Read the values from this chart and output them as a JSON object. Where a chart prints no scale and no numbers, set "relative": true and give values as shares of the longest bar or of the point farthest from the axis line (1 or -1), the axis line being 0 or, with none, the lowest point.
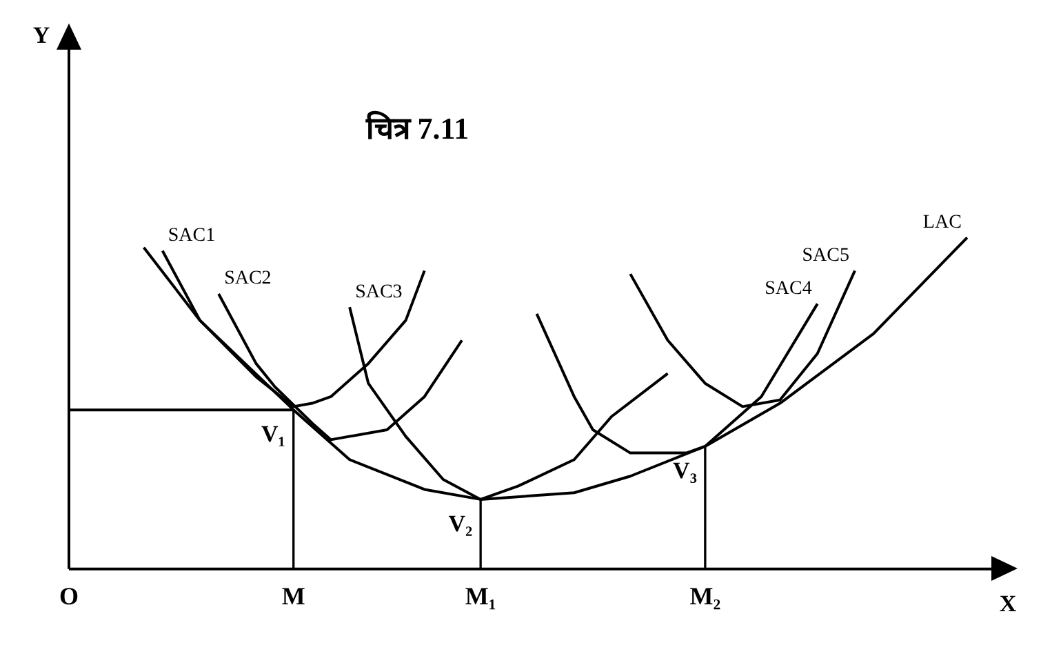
{
  "chart_data": {
    "type": "line",
    "title": "चित्र 7.11",
    "xlabel": "X",
    "relative": true,
    "grid": false,
    "legend": false,
    "marker": "none",
    "tick_labels": "x",
    "categories": [
      "O",
      null,
      null,
      null,
      null,
      null,
      null,
      null,
      null,
      null,
      null,
      null,
      "M",
      null,
      null,
      null,
      null,
      null,
      null,
      null,
      null,
      null,
      "M₁",
      null,
      null,
      null,
      null,
      null,
      null,
      null,
      null,
      null,
      null,
      null,
      "M₂",
      null,
      null,
      null,
      null,
      null,
      null,
      null,
      null,
      null,
      null,
      null,
      null,
      null,
      null,
      null
    ],
    "series": [
      {
        "name": "LAC",
        "color": "#000000",
        "values": [
          null,
          null,
          null,
          null,
          0.97,
          null,
          null,
          0.75,
          null,
          null,
          null,
          null,
          0.48,
          null,
          null,
          0.33,
          null,
          null,
          null,
          0.24,
          null,
          null,
          0.21,
          null,
          null,
          null,
          null,
          0.23,
          null,
          null,
          0.28,
          null,
          null,
          null,
          0.37,
          null,
          null,
          null,
          0.5,
          null,
          null,
          null,
          null,
          0.71,
          null,
          null,
          null,
          null,
          1.0,
          null
        ]
      },
      {
        "name": "SAC1",
        "color": "#000000",
        "values": [
          null,
          null,
          null,
          null,
          null,
          0.96,
          null,
          0.75,
          null,
          null,
          0.58,
          null,
          0.49,
          0.5,
          0.52,
          null,
          0.62,
          null,
          0.75,
          0.9,
          null,
          null,
          null,
          null,
          null,
          null,
          null,
          null,
          null,
          null,
          null,
          null,
          null,
          null,
          null,
          null,
          null,
          null,
          null,
          null,
          null,
          null,
          null,
          null,
          null,
          null,
          null,
          null,
          null,
          null
        ]
      },
      {
        "name": "SAC2",
        "color": "#000000",
        "values": [
          null,
          null,
          null,
          null,
          null,
          null,
          null,
          null,
          0.83,
          null,
          0.62,
          0.55,
          null,
          0.44,
          0.39,
          null,
          null,
          0.42,
          null,
          0.52,
          null,
          0.69,
          null,
          null,
          null,
          null,
          null,
          null,
          null,
          null,
          null,
          null,
          null,
          null,
          null,
          null,
          null,
          null,
          null,
          null,
          null,
          null,
          null,
          null,
          null,
          null,
          null,
          null,
          null,
          null
        ]
      },
      {
        "name": "SAC3",
        "color": "#000000",
        "values": [
          null,
          null,
          null,
          null,
          null,
          null,
          null,
          null,
          null,
          null,
          null,
          null,
          null,
          null,
          null,
          0.79,
          0.56,
          null,
          0.4,
          null,
          0.27,
          null,
          0.21,
          null,
          0.25,
          null,
          null,
          0.33,
          null,
          0.46,
          null,
          null,
          0.59,
          null,
          null,
          null,
          null,
          null,
          null,
          null,
          null,
          null,
          null,
          null,
          null,
          null,
          null,
          null,
          null,
          null
        ]
      },
      {
        "name": "SAC4",
        "color": "#000000",
        "values": [
          null,
          null,
          null,
          null,
          null,
          null,
          null,
          null,
          null,
          null,
          null,
          null,
          null,
          null,
          null,
          null,
          null,
          null,
          null,
          null,
          null,
          null,
          null,
          null,
          null,
          0.77,
          null,
          0.52,
          0.42,
          null,
          0.35,
          null,
          null,
          0.35,
          0.37,
          null,
          null,
          0.52,
          null,
          null,
          0.8,
          null,
          null,
          null,
          null,
          null,
          null,
          null,
          null,
          null
        ]
      },
      {
        "name": "SAC5",
        "color": "#000000",
        "values": [
          null,
          null,
          null,
          null,
          null,
          null,
          null,
          null,
          null,
          null,
          null,
          null,
          null,
          null,
          null,
          null,
          null,
          null,
          null,
          null,
          null,
          null,
          null,
          null,
          null,
          null,
          null,
          null,
          null,
          null,
          0.89,
          null,
          0.69,
          null,
          0.56,
          null,
          0.49,
          null,
          0.51,
          null,
          0.65,
          null,
          0.9,
          null,
          null,
          null,
          null,
          null,
          null,
          null
        ]
      },
      {
        "color": "#000000",
        "values": [
          0.48,
          null,
          null,
          null,
          null,
          null,
          null,
          null,
          null,
          null,
          null,
          null,
          0.48,
          null,
          null,
          null,
          null,
          null,
          null,
          null,
          null,
          null,
          null,
          null,
          null,
          null,
          null,
          null,
          null,
          null,
          null,
          null,
          null,
          null,
          null,
          null,
          null,
          null,
          null,
          null,
          null,
          null,
          null,
          null,
          null,
          null,
          null,
          null,
          null,
          null
        ]
      },
      {
        "type": "bar",
        "color": "#000000",
        "values": [
          null,
          null,
          null,
          null,
          null,
          null,
          null,
          null,
          null,
          null,
          null,
          null,
          0.48,
          null,
          null,
          null,
          null,
          null,
          null,
          null,
          null,
          null,
          0.21,
          null,
          null,
          null,
          null,
          null,
          null,
          null,
          null,
          null,
          null,
          null,
          0.37,
          null,
          null,
          null,
          null,
          null,
          null,
          null,
          null,
          null,
          null,
          null,
          null,
          null,
          null,
          null
        ]
      }
    ],
    "annotations": [
      "Y",
      {
        "text": "V₁",
        "x": "M",
        "y": 0.48
      },
      {
        "text": "V₂",
        "x": "M₁",
        "y": 0.21
      },
      {
        "text": "V₃",
        "x": "M₂",
        "y": 0.37
      }
    ]
  }
}
